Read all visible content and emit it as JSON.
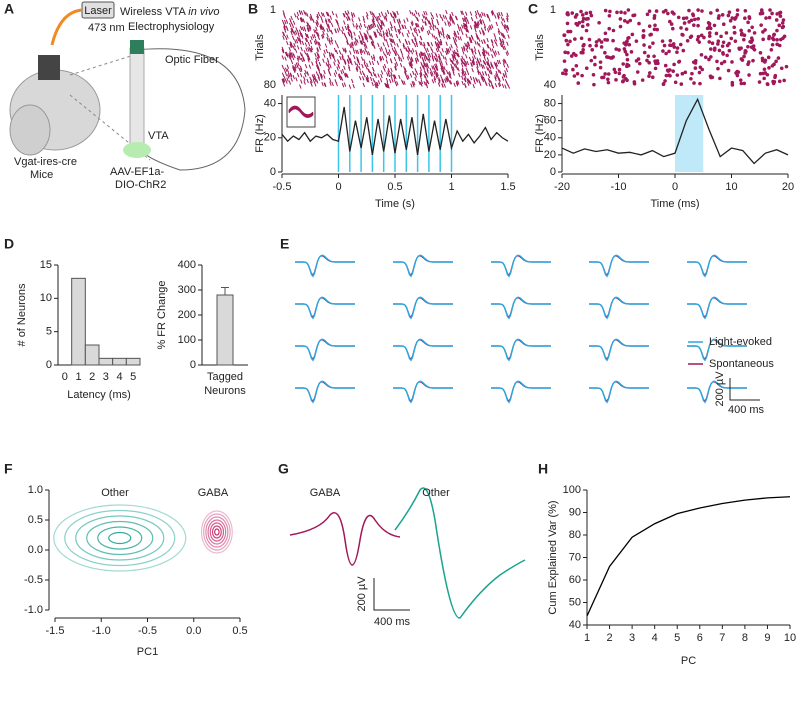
{
  "panel_a": {
    "letter": "A",
    "title": [
      "Wireless VTA",
      "in vivo",
      "Electrophysiology"
    ],
    "laser": "Laser",
    "wavelength": "473 nm",
    "fiber": "Optic Fiber",
    "region": "VTA",
    "mouse": [
      "Vgat-ires-cre",
      "Mice"
    ],
    "virus": [
      "AAV-EF1a-",
      "DIO-ChR2"
    ]
  },
  "panel_e": {
    "letter": "E",
    "legend": [
      {
        "name": "Light-evoked",
        "color": "#29a8e0"
      },
      {
        "name": "Spontaneous",
        "color": "#a0185a"
      }
    ],
    "scale_y": "200 µV",
    "scale_x": "400 ms"
  },
  "panel_g": {
    "letter": "G",
    "labels": [
      {
        "name": "GABA",
        "color": "#a0185a"
      },
      {
        "name": "Other",
        "color": "#1aa38f"
      }
    ],
    "scale_y": "200 µV",
    "scale_x": "400 ms"
  },
  "chart_data": [
    {
      "type": "raster-line",
      "letter": "B",
      "raster_ylabel": "Trials",
      "raster_yticks": [
        1,
        80
      ],
      "ylabel": "FR (Hz)",
      "xlabel": "Time (s)",
      "color": "#222222",
      "raster_color": "#a0185a",
      "light_color": "#3cc5e8",
      "x": [
        -0.5,
        -0.45,
        -0.4,
        -0.35,
        -0.3,
        -0.25,
        -0.2,
        -0.15,
        -0.1,
        -0.05,
        0,
        0.05,
        0.1,
        0.15,
        0.2,
        0.25,
        0.3,
        0.35,
        0.4,
        0.45,
        0.5,
        0.55,
        0.6,
        0.65,
        0.7,
        0.75,
        0.8,
        0.85,
        0.9,
        0.95,
        1,
        1.05,
        1.1,
        1.15,
        1.2,
        1.25,
        1.3,
        1.35,
        1.4,
        1.45,
        1.5
      ],
      "values": [
        22,
        18,
        21,
        19,
        23,
        18,
        21,
        20,
        22,
        19,
        18,
        38,
        12,
        30,
        14,
        32,
        10,
        31,
        12,
        33,
        11,
        31,
        13,
        32,
        10,
        34,
        12,
        30,
        13,
        31,
        14,
        24,
        18,
        22,
        17,
        21,
        26,
        19,
        23,
        20,
        18
      ],
      "light_pulses": [
        0,
        0.1,
        0.2,
        0.3,
        0.4,
        0.5,
        0.6,
        0.7,
        0.8,
        0.9,
        1
      ],
      "xlim": [
        -0.5,
        1.5
      ],
      "xticks": [
        -0.5,
        0,
        0.5,
        1,
        1.5
      ],
      "ylim": [
        0,
        45
      ],
      "yticks": [
        0,
        20,
        40
      ]
    },
    {
      "type": "raster-line",
      "letter": "C",
      "raster_ylabel": "Trials",
      "raster_yticks": [
        1,
        40
      ],
      "ylabel": "FR (Hz)",
      "xlabel": "Time (ms)",
      "color": "#222222",
      "raster_color": "#a0185a",
      "light_color": "#bfe9f8",
      "x": [
        -20,
        -18,
        -16,
        -14,
        -12,
        -10,
        -8,
        -6,
        -4,
        -2,
        0,
        2,
        4,
        6,
        8,
        10,
        12,
        14,
        16,
        18,
        20
      ],
      "values": [
        28,
        22,
        27,
        24,
        26,
        22,
        23,
        20,
        25,
        18,
        22,
        60,
        85,
        50,
        18,
        28,
        25,
        10,
        22,
        26,
        20
      ],
      "light_window": [
        0,
        5
      ],
      "xlim": [
        -20,
        20
      ],
      "xticks": [
        -20,
        -10,
        0,
        10,
        20
      ],
      "ylim": [
        0,
        90
      ],
      "yticks": [
        0,
        20,
        40,
        60,
        80
      ]
    },
    {
      "type": "bar",
      "letter": "D",
      "ylabel": "# of Neurons",
      "xlabel": "Latency (ms)",
      "color": "#d9d9d9",
      "categories": [
        "0",
        "1",
        "2",
        "3",
        "4",
        "5"
      ],
      "values": [
        0,
        13,
        3,
        1,
        1,
        1
      ],
      "ylim": [
        0,
        15
      ],
      "yticks": [
        0,
        5,
        10,
        15
      ]
    },
    {
      "type": "errorbar",
      "ylabel": "% FR Change",
      "color": "#d9d9d9",
      "categories": [
        "Tagged Neurons"
      ],
      "values": [
        280
      ],
      "errors": [
        30
      ],
      "ylim": [
        0,
        400
      ],
      "yticks": [
        0,
        100,
        200,
        300,
        400
      ]
    },
    {
      "type": "contour",
      "letter": "F",
      "xlabel": "PC1",
      "groups": [
        {
          "name": "Other",
          "color": "#1aa38f",
          "center": [
            -0.8,
            0.2
          ]
        },
        {
          "name": "GABA",
          "color": "#c2185b",
          "center": [
            0.25,
            0.3
          ]
        }
      ],
      "xlim": [
        -1.5,
        0.5
      ],
      "xticks": [
        {
          "value": -1.5,
          "label": "-1.5"
        },
        {
          "value": -1,
          "label": "-1.0"
        },
        {
          "value": -0.5,
          "label": "-0.5"
        },
        {
          "value": 0,
          "label": "0.0"
        },
        {
          "value": 0.5,
          "label": "0.5"
        }
      ],
      "ylim": [
        -1,
        1
      ],
      "yticks": [
        {
          "value": 1,
          "label": "1.0"
        },
        {
          "value": 0.5,
          "label": "0.5"
        },
        {
          "value": 0,
          "label": "0.0"
        },
        {
          "value": -0.5,
          "label": "-0.5"
        },
        {
          "value": -1,
          "label": "-1.0"
        }
      ]
    },
    {
      "type": "line",
      "letter": "H",
      "ylabel": "Cum Explained Var (%)",
      "xlabel": "PC",
      "color": "#000000",
      "x": [
        1,
        2,
        3,
        4,
        5,
        6,
        7,
        8,
        9,
        10
      ],
      "values": [
        44,
        66,
        79,
        85,
        89.5,
        92,
        94,
        95.5,
        96.5,
        97
      ],
      "xlim": [
        1,
        10
      ],
      "xticks": [
        1,
        2,
        3,
        4,
        5,
        6,
        7,
        8,
        9,
        10
      ],
      "ylim": [
        40,
        100
      ],
      "yticks": [
        40,
        50,
        60,
        70,
        80,
        90,
        100
      ]
    }
  ]
}
